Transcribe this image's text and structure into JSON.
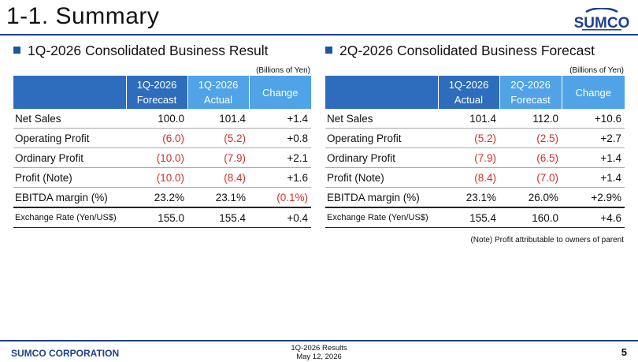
{
  "page": {
    "title": "1-1. Summary",
    "logo_text": "SUMCO",
    "footnote": "(Note) Profit attributable to owners of parent"
  },
  "colors": {
    "brand_blue": "#1f3f8f",
    "header_dark": "#2e6dbd",
    "header_light": "#4fa3e6",
    "negative_red": "#d4302a"
  },
  "left_table": {
    "heading": "1Q-2026 Consolidated Business Result",
    "unit": "(Billions of Yen)",
    "col1": [
      "1Q-2026",
      "Forecast"
    ],
    "col2": [
      "1Q-2026",
      "Actual"
    ],
    "col3": "Change",
    "rows": [
      {
        "label": "Net Sales",
        "v1": "100.0",
        "v2": "101.4",
        "v3": "+1.4"
      },
      {
        "label": "Operating Profit",
        "v1": "(6.0)",
        "v2": "(5.2)",
        "v3": "+0.8"
      },
      {
        "label": "Ordinary Profit",
        "v1": "(10.0)",
        "v2": "(7.9)",
        "v3": "+2.1"
      },
      {
        "label": "Profit (Note)",
        "v1": "(10.0)",
        "v2": "(8.4)",
        "v3": "+1.6"
      },
      {
        "label": "EBITDA margin (%)",
        "v1": "23.2%",
        "v2": "23.1%",
        "v3": "(0.1%)"
      },
      {
        "label": "Exchange Rate (Yen/US$)",
        "v1": "155.0",
        "v2": "155.4",
        "v3": "+0.4"
      }
    ]
  },
  "right_table": {
    "heading": "2Q-2026 Consolidated Business Forecast",
    "unit": "(Billions of Yen)",
    "col1": [
      "1Q-2026",
      "Actual"
    ],
    "col2": [
      "2Q-2026",
      "Forecast"
    ],
    "col3": "Change",
    "rows": [
      {
        "label": "Net Sales",
        "v1": "101.4",
        "v2": "112.0",
        "v3": "+10.6"
      },
      {
        "label": "Operating Profit",
        "v1": "(5.2)",
        "v2": "(2.5)",
        "v3": "+2.7"
      },
      {
        "label": "Ordinary Profit",
        "v1": "(7.9)",
        "v2": "(6.5)",
        "v3": "+1.4"
      },
      {
        "label": "Profit (Note)",
        "v1": "(8.4)",
        "v2": "(7.0)",
        "v3": "+1.4"
      },
      {
        "label": "EBITDA margin (%)",
        "v1": "23.1%",
        "v2": "26.0%",
        "v3": "+2.9%"
      },
      {
        "label": "Exchange Rate (Yen/US$)",
        "v1": "155.4",
        "v2": "160.0",
        "v3": "+4.6"
      }
    ]
  },
  "footer": {
    "company": "SUMCO CORPORATION",
    "doc_title": "1Q-2026 Results",
    "date": "May 12, 2026",
    "page_number": "5"
  }
}
